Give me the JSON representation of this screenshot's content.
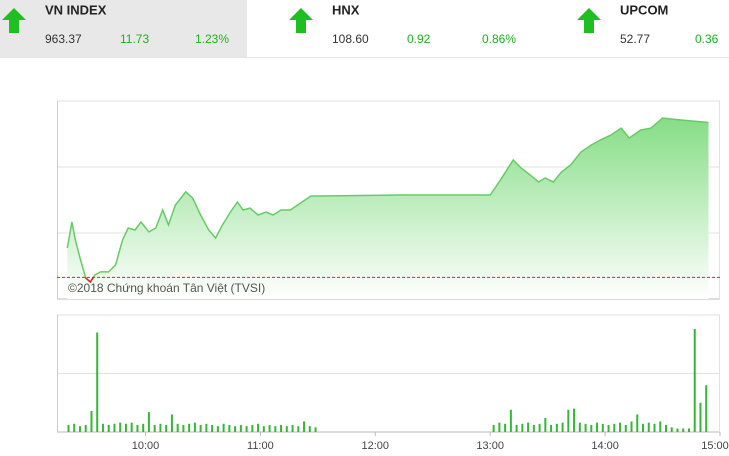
{
  "tickers": [
    {
      "name": "VN INDEX",
      "price": "963.37",
      "change": "11.73",
      "percent": "1.23%"
    },
    {
      "name": "HNX",
      "price": "108.60",
      "change": "0.92",
      "percent": "0.86%"
    },
    {
      "name": "UPCOM",
      "price": "52.77",
      "change": "0.36"
    }
  ],
  "chart_data": [
    {
      "type": "area",
      "watermark": "©2018 Chứng khoán Tân Việt (TVSI)",
      "x": [
        9.32,
        9.36,
        9.39,
        9.43,
        9.48,
        9.52,
        9.56,
        9.61,
        9.68,
        9.74,
        9.8,
        9.85,
        9.91,
        9.96,
        10.03,
        10.09,
        10.15,
        10.2,
        10.26,
        10.35,
        10.41,
        10.48,
        10.55,
        10.61,
        10.67,
        10.74,
        10.8,
        10.85,
        10.91,
        10.98,
        11.05,
        11.11,
        11.18,
        11.26,
        11.35,
        11.44,
        11.51,
        12.22,
        13.0,
        13.09,
        13.2,
        13.27,
        13.35,
        13.42,
        13.48,
        13.55,
        13.62,
        13.7,
        13.79,
        13.88,
        13.96,
        14.05,
        14.14,
        14.21,
        14.31,
        14.4,
        14.5,
        14.66,
        14.9
      ],
      "series": [
        {
          "color": "#66cc66",
          "values": [
            953.86,
            955.83,
            954.47,
            953.11,
            951.59,
            951.29,
            951.82,
            952.05,
            952.05,
            952.58,
            954.47,
            955.38,
            955.23,
            955.83,
            955.08,
            955.38,
            956.74,
            955.61,
            957.12,
            958.11,
            957.65,
            956.36,
            955.23,
            954.62,
            955.61,
            956.59,
            957.35,
            956.74,
            956.89,
            956.36,
            956.59,
            956.36,
            956.74,
            956.74,
            957.27,
            957.8,
            957.8,
            957.88,
            957.88,
            959.02,
            960.53,
            959.92,
            959.39,
            958.86,
            959.17,
            958.86,
            959.62,
            960.15,
            961.14,
            961.67,
            962.05,
            962.42,
            962.95,
            962.2,
            962.8,
            962.95,
            963.71,
            963.56,
            963.37
          ]
        }
      ],
      "reference": 951.64,
      "reference_color": "#e02020",
      "xlim": [
        9.23,
        15
      ],
      "ylim": [
        950,
        965
      ],
      "yticks": [
        950,
        955,
        960,
        965
      ],
      "grid": true
    },
    {
      "type": "bar",
      "color": "#33b833",
      "x": [
        9.33,
        9.38,
        9.43,
        9.48,
        9.53,
        9.58,
        9.63,
        9.68,
        9.73,
        9.78,
        9.83,
        9.88,
        9.93,
        9.98,
        10.03,
        10.08,
        10.13,
        10.18,
        10.23,
        10.28,
        10.33,
        10.38,
        10.43,
        10.48,
        10.53,
        10.58,
        10.63,
        10.68,
        10.73,
        10.78,
        10.83,
        10.88,
        10.93,
        10.98,
        11.03,
        11.08,
        11.13,
        11.18,
        11.23,
        11.28,
        11.33,
        11.38,
        11.43,
        11.48,
        13.03,
        13.08,
        13.13,
        13.18,
        13.23,
        13.28,
        13.33,
        13.38,
        13.43,
        13.48,
        13.53,
        13.58,
        13.63,
        13.68,
        13.73,
        13.78,
        13.83,
        13.88,
        13.93,
        13.98,
        14.03,
        14.08,
        14.13,
        14.18,
        14.23,
        14.28,
        14.33,
        14.38,
        14.43,
        14.48,
        14.53,
        14.58,
        14.63,
        14.68,
        14.73,
        14.78,
        14.83,
        14.88
      ],
      "values": [
        6,
        7,
        5,
        6,
        18,
        85,
        7,
        6,
        7,
        8,
        7,
        8,
        6,
        7,
        17,
        6,
        7,
        6,
        15,
        7,
        6,
        7,
        8,
        6,
        7,
        6,
        5,
        7,
        6,
        5,
        6,
        5,
        6,
        7,
        5,
        6,
        5,
        6,
        5,
        6,
        5,
        9,
        5,
        4,
        6,
        8,
        7,
        19,
        6,
        7,
        8,
        6,
        7,
        12,
        6,
        7,
        8,
        19,
        20,
        8,
        7,
        6,
        8,
        7,
        6,
        7,
        8,
        6,
        9,
        15,
        7,
        8,
        7,
        9,
        6,
        4,
        3,
        3,
        3,
        88,
        25,
        40
      ],
      "xlim": [
        9.23,
        15
      ],
      "ylim": [
        0,
        100
      ],
      "yticks": [
        0,
        50,
        100
      ],
      "grid": true,
      "xticks": [
        {
          "value": 10,
          "label": "10:00"
        },
        {
          "value": 11,
          "label": "11:00"
        },
        {
          "value": 12,
          "label": "12:00"
        },
        {
          "value": 13,
          "label": "13:00"
        },
        {
          "value": 14,
          "label": "14:00"
        },
        {
          "value": 15,
          "label": "15:00"
        }
      ]
    }
  ]
}
